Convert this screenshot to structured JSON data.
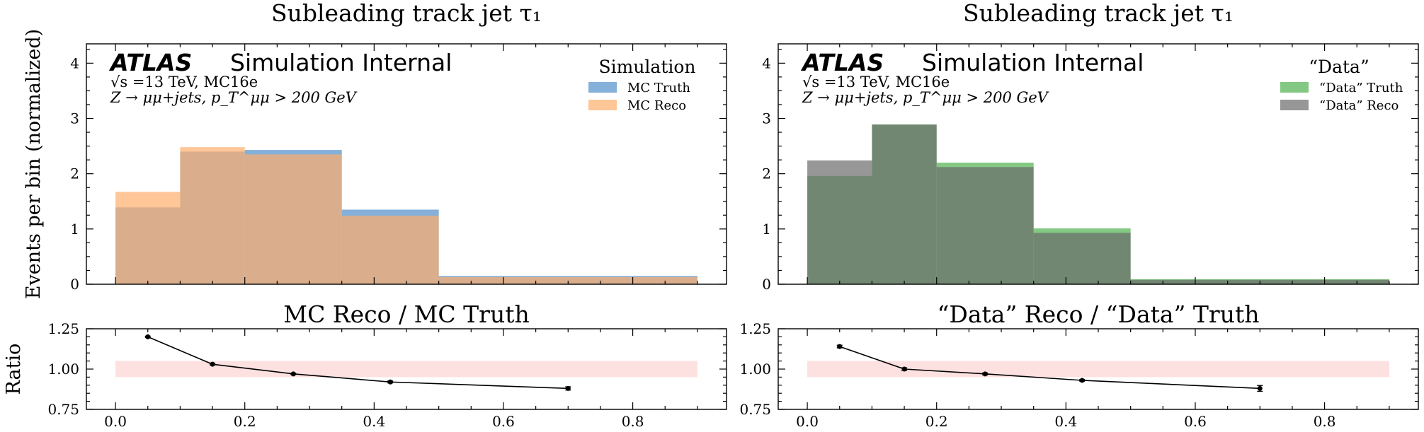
{
  "y_axis_label_main": "Events per bin (normalized)",
  "y_axis_label_ratio": "Ratio",
  "chart_data": [
    {
      "type": "bar",
      "title": "Subleading track jet τ₁",
      "ylim": [
        0,
        4.35
      ],
      "yticks": [
        0,
        1,
        2,
        3,
        4
      ],
      "bin_edges": [
        0.0,
        0.1,
        0.2,
        0.35,
        0.5,
        0.9
      ],
      "atlas_label": "ATLAS",
      "atlas_status": "Simulation Internal",
      "info_line1": "√s =13 TeV, MC16e",
      "info_line2": "Z → μμ+jets, p_T^μμ > 200 GeV",
      "legend_title": "Simulation",
      "legend_position": "top-right",
      "series": [
        {
          "name": "MC Truth",
          "color": "#6fa2d2",
          "values": [
            1.39,
            2.4,
            2.43,
            1.35,
            0.15
          ]
        },
        {
          "name": "MC Reco",
          "color": "#ffae6b",
          "values": [
            1.67,
            2.48,
            2.35,
            1.24,
            0.13
          ]
        }
      ]
    },
    {
      "type": "bar",
      "title": "Subleading track jet τ₁",
      "ylim": [
        0,
        4.35
      ],
      "yticks": [
        0,
        1,
        2,
        3,
        4
      ],
      "bin_edges": [
        0.0,
        0.1,
        0.2,
        0.35,
        0.5,
        0.9
      ],
      "atlas_label": "ATLAS",
      "atlas_status": "Simulation Internal",
      "info_line1": "√s =13 TeV, MC16e",
      "info_line2": "Z → μμ+jets, p_T^μμ > 200 GeV",
      "legend_title": "“Data”",
      "legend_position": "top-right",
      "series": [
        {
          "name": "“Data” Truth",
          "color": "#6dbf6d",
          "values": [
            1.96,
            2.89,
            2.2,
            1.01,
            0.09
          ]
        },
        {
          "name": "“Data” Reco",
          "color": "#6b6b6b",
          "values": [
            2.24,
            2.89,
            2.12,
            0.93,
            0.08
          ]
        }
      ]
    },
    {
      "type": "line",
      "title": "MC Reco / MC Truth",
      "ylabel": "Ratio",
      "ylim": [
        0.75,
        1.25
      ],
      "yticks": [
        "0.75",
        "1.00",
        "1.25"
      ],
      "xlim": [
        -0.045,
        0.945
      ],
      "xticks": [
        "0.0",
        "0.2",
        "0.4",
        "0.6",
        "0.8"
      ],
      "band": [
        0.95,
        1.05
      ],
      "band_xrange": [
        0.0,
        0.9
      ],
      "band_color": "#fde0e0",
      "x": [
        0.05,
        0.15,
        0.275,
        0.425,
        0.7
      ],
      "y": [
        1.2,
        1.03,
        0.97,
        0.92,
        0.88
      ],
      "yerr": [
        0.004,
        0.004,
        0.004,
        0.006,
        0.01
      ]
    },
    {
      "type": "line",
      "title": "“Data” Reco / “Data” Truth",
      "ylim": [
        0.75,
        1.25
      ],
      "yticks": [
        "0.75",
        "1.00",
        "1.25"
      ],
      "xlim": [
        -0.045,
        0.945
      ],
      "xticks": [
        "0.0",
        "0.2",
        "0.4",
        "0.6",
        "0.8"
      ],
      "band": [
        0.95,
        1.05
      ],
      "band_xrange": [
        0.0,
        0.9
      ],
      "band_color": "#fde0e0",
      "x": [
        0.05,
        0.15,
        0.275,
        0.425,
        0.7
      ],
      "y": [
        1.14,
        1.0,
        0.97,
        0.93,
        0.88
      ],
      "yerr": [
        0.008,
        0.008,
        0.006,
        0.005,
        0.018
      ]
    }
  ]
}
